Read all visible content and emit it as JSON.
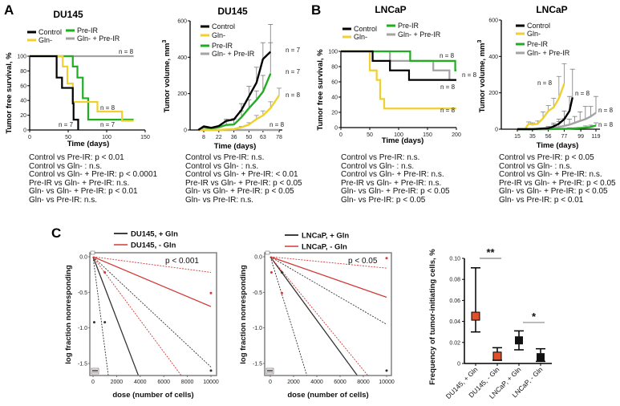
{
  "panel_labels": [
    "A",
    "B",
    "C"
  ],
  "colors": {
    "control": "#000000",
    "gln_minus": "#f0d030",
    "pre_ir": "#21ad21",
    "gln_pre_ir": "#a3a3a3",
    "minus_gln": "#d23a35",
    "du145_marker": "#e0502a",
    "lncap_marker": "#111111"
  },
  "stats": {
    "a_survival": [
      "Control vs Pre-IR: p < 0.01",
      "Control vs Gln- : n.s.",
      "Control vs Gln- + Pre-IR: p < 0.0001",
      "Pre-IR vs Gln- + Pre-IR: n.s.",
      "Gln- vs Gln- + Pre-IR: p < 0.01",
      "Gln- vs Pre-IR: n.s."
    ],
    "a_volume": [
      "Control vs Pre-IR: n.s.",
      "Control vs Gln- : n.s.",
      "Control vs Gln- + Pre-IR: < 0.01",
      "Pre-IR vs Gln- + Pre-IR: p < 0.05",
      "Gln- vs Gln- + Pre-IR: p < 0.05",
      "Gln- vs Pre-IR: n.s."
    ],
    "b_survival": [
      "Control vs Pre-IR: n.s.",
      "Control vs Gln- : n.s.",
      "Control vs Gln- + Pre-IR: n.s.",
      "Pre-IR vs Gln- + Pre-IR: n.s.",
      "Gln- vs Gln- + Pre-IR: p < 0.05",
      "Gln- vs Pre-IR: p < 0.05"
    ],
    "b_volume": [
      "Control vs Pre-IR: p < 0.05",
      "Control vs Gln- : n.s.",
      "Control vs Gln- + Pre-IR: n.s.",
      "Pre-IR vs Gln- + Pre-IR: p < 0.05",
      "Gln- vs Gln- + Pre-IR: p < 0.05",
      "Gln- vs Pre-IR: p < 0.01"
    ]
  },
  "chart_data": [
    {
      "id": "a_survival",
      "type": "line",
      "step": true,
      "title": "DU145",
      "xlabel": "Time (days)",
      "ylabel": "Tumor free survival, %",
      "xlim": [
        0,
        150
      ],
      "ylim": [
        0,
        100
      ],
      "xticks": [
        0,
        50,
        100,
        150
      ],
      "yticks": [
        0,
        20,
        40,
        60,
        80,
        100
      ],
      "series": [
        {
          "name": "Control",
          "color": "#000000",
          "steps": [
            [
              0,
              100
            ],
            [
              35,
              71
            ],
            [
              42,
              57
            ],
            [
              56,
              36
            ],
            [
              57,
              14
            ],
            [
              63,
              0
            ]
          ]
        },
        {
          "name": "Gln-",
          "color": "#f0d030",
          "steps": [
            [
              0,
              100
            ],
            [
              43,
              86
            ],
            [
              49,
              63
            ],
            [
              56,
              38
            ],
            [
              88,
              25
            ],
            [
              120,
              12.5
            ],
            [
              135,
              12.5
            ]
          ]
        },
        {
          "name": "Pre-IR",
          "color": "#21ad21",
          "steps": [
            [
              0,
              100
            ],
            [
              56,
              86
            ],
            [
              62,
              71
            ],
            [
              69,
              43
            ],
            [
              76,
              14
            ],
            [
              135,
              14
            ]
          ]
        },
        {
          "name": "Gln- + Pre-IR",
          "color": "#a3a3a3",
          "steps": [
            [
              0,
              100
            ],
            [
              135,
              100
            ]
          ]
        }
      ],
      "annotations": [
        "n = 8",
        "n = 8",
        "n = 7",
        "n = 7"
      ]
    },
    {
      "id": "a_volume",
      "type": "line",
      "title": "DU145",
      "xlabel": "Time (days)",
      "ylabel": "Tumor volume, mm",
      "ylabel_sup": "3",
      "xlim": [
        -4,
        81
      ],
      "ylim": [
        0,
        600
      ],
      "xticks": [
        8,
        22,
        36,
        50,
        63,
        78
      ],
      "yticks": [
        0,
        200,
        400,
        600
      ],
      "series": [
        {
          "name": "Control",
          "color": "#000000",
          "x": [
            3,
            8,
            15,
            22,
            29,
            36,
            43,
            50,
            57,
            63,
            70
          ],
          "y": [
            0,
            20,
            12,
            22,
            50,
            58,
            110,
            185,
            260,
            390,
            430
          ],
          "err": [
            0,
            0,
            0,
            0,
            10,
            5,
            35,
            55,
            85,
            90,
            150
          ]
        },
        {
          "name": "Gln-",
          "color": "#f0d030",
          "x": [
            3,
            8,
            15,
            22,
            29,
            36,
            43,
            50,
            57,
            63,
            70,
            78
          ],
          "y": [
            0,
            0,
            0,
            0,
            3,
            5,
            15,
            30,
            60,
            80,
            120,
            190
          ],
          "err": [
            0,
            0,
            0,
            0,
            0,
            0,
            5,
            10,
            20,
            25,
            35,
            40
          ]
        },
        {
          "name": "Pre-IR",
          "color": "#21ad21",
          "x": [
            3,
            8,
            15,
            22,
            29,
            36,
            43,
            50,
            57,
            63,
            70
          ],
          "y": [
            0,
            15,
            8,
            15,
            28,
            30,
            70,
            120,
            165,
            210,
            310
          ],
          "err": [
            0,
            0,
            0,
            0,
            25,
            30,
            35,
            45,
            50,
            90,
            170
          ]
        },
        {
          "name": "Gln- + Pre-IR",
          "color": "#a3a3a3",
          "x": [
            3,
            78
          ],
          "y": [
            0,
            0
          ],
          "err": [
            0,
            0
          ]
        }
      ],
      "annotations": [
        "n = 7",
        "n = 7",
        "n = 8",
        "n = 8"
      ]
    },
    {
      "id": "b_survival",
      "type": "line",
      "step": true,
      "title": "LNCaP",
      "xlabel": "Time (days)",
      "ylabel": "Tumor free survival, %",
      "xlim": [
        0,
        200
      ],
      "ylim": [
        0,
        100
      ],
      "xticks": [
        0,
        50,
        100,
        150,
        200
      ],
      "yticks": [
        0,
        20,
        40,
        60,
        80,
        100
      ],
      "series": [
        {
          "name": "Control",
          "color": "#000000",
          "steps": [
            [
              0,
              100
            ],
            [
              55,
              87.5
            ],
            [
              85,
              75
            ],
            [
              118,
              62.5
            ],
            [
              200,
              62.5
            ]
          ]
        },
        {
          "name": "Gln-",
          "color": "#f0d030",
          "steps": [
            [
              0,
              100
            ],
            [
              50,
              75
            ],
            [
              62,
              62.5
            ],
            [
              68,
              37.5
            ],
            [
              75,
              25
            ],
            [
              200,
              25
            ]
          ]
        },
        {
          "name": "Pre-IR",
          "color": "#21ad21",
          "steps": [
            [
              0,
              100
            ],
            [
              120,
              87.5
            ],
            [
              198,
              75
            ],
            [
              200,
              75
            ]
          ]
        },
        {
          "name": "Gln- + Pre-IR",
          "color": "#a3a3a3",
          "steps": [
            [
              0,
              100
            ],
            [
              85,
              87.5
            ],
            [
              160,
              75
            ],
            [
              188,
              62.5
            ],
            [
              200,
              62.5
            ]
          ]
        }
      ],
      "annotations": [
        "n = 8",
        "n = 8",
        "n = 8",
        "n = 8"
      ]
    },
    {
      "id": "b_volume",
      "type": "line",
      "title": "LNCaP",
      "xlabel": "Time (days)",
      "ylabel": "Tumor volume, mm",
      "ylabel_sup": "3",
      "xlim": [
        -6,
        124
      ],
      "ylim": [
        0,
        600
      ],
      "xticks": [
        15,
        35,
        56,
        77,
        99,
        119
      ],
      "yticks": [
        0,
        200,
        400,
        600
      ],
      "series": [
        {
          "name": "Control",
          "color": "#000000",
          "x": [
            15,
            25,
            35,
            42,
            49,
            56,
            63,
            70,
            77,
            84,
            88
          ],
          "y": [
            0,
            0,
            0,
            2,
            4,
            5,
            15,
            30,
            55,
            100,
            175
          ],
          "err": [
            0,
            0,
            0,
            0,
            0,
            5,
            10,
            25,
            45,
            80,
            155
          ]
        },
        {
          "name": "Gln-",
          "color": "#f0d030",
          "x": [
            25,
            30,
            35,
            42,
            49,
            56,
            63,
            70,
            77
          ],
          "y": [
            0,
            30,
            25,
            30,
            60,
            100,
            120,
            170,
            250
          ],
          "err": [
            0,
            10,
            10,
            15,
            35,
            30,
            50,
            120,
            110
          ]
        },
        {
          "name": "Pre-IR",
          "color": "#21ad21",
          "x": [
            15,
            56,
            84,
            105,
            112,
            119
          ],
          "y": [
            0,
            0,
            3,
            8,
            12,
            20
          ],
          "err": [
            0,
            0,
            5,
            10,
            10,
            15
          ]
        },
        {
          "name": "Gln- + Pre-IR",
          "color": "#a3a3a3",
          "x": [
            56,
            63,
            70,
            77,
            84,
            91,
            98,
            105,
            112,
            119
          ],
          "y": [
            5,
            8,
            12,
            18,
            25,
            35,
            45,
            55,
            70,
            90
          ],
          "err": [
            10,
            25,
            30,
            40,
            30,
            35,
            50,
            70,
            55,
            90
          ]
        }
      ],
      "annotations": [
        "n = 8",
        "n = 8",
        "n = 8",
        "n = 8"
      ]
    },
    {
      "id": "c_du145",
      "type": "scatter",
      "xlabel": "dose (number of cells)",
      "ylabel": "log fraction nonresponding",
      "xlim": [
        -300,
        10500
      ],
      "ylim": [
        -1.67,
        0.07
      ],
      "xticks": [
        0,
        2000,
        4000,
        6000,
        8000,
        10000
      ],
      "yticks": [
        0.0,
        -0.5,
        -1.0,
        -1.5
      ],
      "p_value": "p < 0.001",
      "legend": [
        {
          "name": "DU145, + Gln",
          "color": "#000000"
        },
        {
          "name": "DU145, - Gln",
          "color": "#d23a35"
        }
      ],
      "fits": [
        {
          "group": "DU145, + Gln",
          "style": "solid",
          "y_at_10000": -4.34
        },
        {
          "group": "DU145, + Gln",
          "style": "dotted",
          "y_at_10000": -12.9
        },
        {
          "group": "DU145, + Gln",
          "style": "dotted",
          "y_at_10000": -1.55
        },
        {
          "group": "DU145, - Gln",
          "style": "solid",
          "y_at_10000": -0.7
        },
        {
          "group": "DU145, - Gln",
          "style": "dotted",
          "y_at_10000": -0.22
        },
        {
          "group": "DU145, - Gln",
          "style": "dotted",
          "y_at_10000": -2.23
        }
      ],
      "points": [
        {
          "group": "DU145, + Gln",
          "x": 100,
          "y": -0.92
        },
        {
          "group": "DU145, + Gln",
          "x": 1000,
          "y": -0.92
        },
        {
          "group": "DU145, + Gln",
          "x": 10000,
          "y": -1.6
        },
        {
          "group": "DU145, - Gln",
          "x": 1000,
          "y": -0.22
        },
        {
          "group": "DU145, - Gln",
          "x": 10000,
          "y": -0.51
        }
      ]
    },
    {
      "id": "c_lncap",
      "type": "scatter",
      "xlabel": "dose (number of cells)",
      "ylabel": "log fraction nonresponding",
      "xlim": [
        -300,
        10500
      ],
      "ylim": [
        -1.67,
        0.07
      ],
      "xticks": [
        0,
        2000,
        4000,
        6000,
        8000,
        10000
      ],
      "yticks": [
        0.0,
        -0.5,
        -1.0,
        -1.5
      ],
      "p_value": "p < 0.05",
      "legend": [
        {
          "name": "LNCaP, + Gln",
          "color": "#000000"
        },
        {
          "name": "LNCaP, - Gln",
          "color": "#d23a35"
        }
      ],
      "fits": [
        {
          "group": "LNCaP, + Gln",
          "style": "solid",
          "y_at_10000": -2.23
        },
        {
          "group": "LNCaP, + Gln",
          "style": "dotted",
          "y_at_10000": -5.3
        },
        {
          "group": "LNCaP, + Gln",
          "style": "dotted",
          "y_at_10000": -0.95
        },
        {
          "group": "LNCaP, - Gln",
          "style": "solid",
          "y_at_10000": -0.57
        },
        {
          "group": "LNCaP, - Gln",
          "style": "dotted",
          "y_at_10000": -0.16
        },
        {
          "group": "LNCaP, - Gln",
          "style": "dotted",
          "y_at_10000": -1.99
        }
      ],
      "points": [
        {
          "group": "LNCaP, + Gln",
          "x": 1000,
          "y": -0.22
        },
        {
          "group": "LNCaP, + Gln",
          "x": 10000,
          "y": -1.6
        },
        {
          "group": "LNCaP, - Gln",
          "x": 100,
          "y": -0.22
        },
        {
          "group": "LNCaP, - Gln",
          "x": 1000,
          "y": -0.51
        },
        {
          "group": "LNCaP, - Gln",
          "x": 10000,
          "y": -0.02
        }
      ]
    },
    {
      "id": "c_frequency",
      "type": "scatter",
      "ylabel": "Frequency of tumor-initiating cells, %",
      "ylim": [
        0,
        0.1
      ],
      "yticks": [
        0,
        0.02,
        0.04,
        0.06,
        0.08,
        0.1
      ],
      "ytick_labels": [
        "0",
        "0.02",
        "0.04",
        "0.06",
        "0.08",
        "0.10"
      ],
      "categories": [
        "DU145, + Gln",
        "DU145, - Gln",
        "LNCaP, + Gln",
        "LNCaP, - Gln"
      ],
      "values": [
        0.045,
        0.007,
        0.022,
        0.006
      ],
      "ci_low": [
        0.03,
        0.003,
        0.013,
        0.002
      ],
      "ci_high": [
        0.091,
        0.015,
        0.031,
        0.014
      ],
      "marker_colors": [
        "#e0502a",
        "#e0502a",
        "#111111",
        "#111111"
      ],
      "significance": [
        {
          "between": [
            0,
            1
          ],
          "label": "**"
        },
        {
          "between": [
            2,
            3
          ],
          "label": "*"
        }
      ]
    }
  ]
}
